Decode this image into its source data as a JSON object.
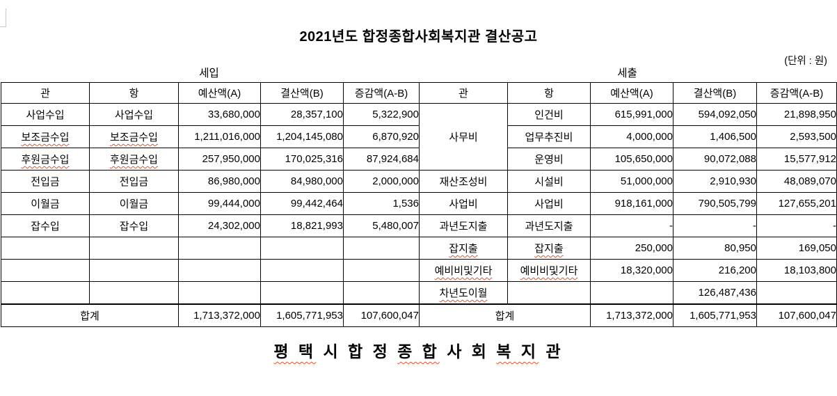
{
  "title": "2021년도 합정종합사회복지관 결산공고",
  "unit_note": "(단위 : 원)",
  "sections": {
    "revenue_caption": "세입",
    "expenditure_caption": "세출"
  },
  "columns": [
    "관",
    "항",
    "예산액(A)",
    "결산액(B)",
    "증감액(A-B)",
    "관",
    "항",
    "예산액(A)",
    "결산액(B)",
    "증감액(A-B)"
  ],
  "rows": [
    [
      {
        "t": "사업수입"
      },
      {
        "t": "사업수입"
      },
      {
        "t": "33,680,000",
        "n": 1
      },
      {
        "t": "28,357,100",
        "n": 1
      },
      {
        "t": "5,322,900",
        "n": 1
      },
      {
        "t": "사무비",
        "rs": 3
      },
      {
        "t": "인건비"
      },
      {
        "t": "615,991,000",
        "n": 1
      },
      {
        "t": "594,092,050",
        "n": 1
      },
      {
        "t": "21,898,950",
        "n": 1
      }
    ],
    [
      {
        "t": "보조금수입",
        "w": 1
      },
      {
        "t": "보조금수입",
        "w": 1
      },
      {
        "t": "1,211,016,000",
        "n": 1
      },
      {
        "t": "1,204,145,080",
        "n": 1
      },
      {
        "t": "6,870,920",
        "n": 1
      },
      null,
      {
        "t": "업무추진비"
      },
      {
        "t": "4,000,000",
        "n": 1
      },
      {
        "t": "1,406,500",
        "n": 1
      },
      {
        "t": "2,593,500",
        "n": 1
      }
    ],
    [
      {
        "t": "후원금수입",
        "w": 1
      },
      {
        "t": "후원금수입",
        "w": 1
      },
      {
        "t": "257,950,000",
        "n": 1
      },
      {
        "t": "170,025,316",
        "n": 1
      },
      {
        "t": "87,924,684",
        "n": 1
      },
      null,
      {
        "t": "운영비"
      },
      {
        "t": "105,650,000",
        "n": 1
      },
      {
        "t": "90,072,088",
        "n": 1
      },
      {
        "t": "15,577,912",
        "n": 1
      }
    ],
    [
      {
        "t": "전입금"
      },
      {
        "t": "전입금"
      },
      {
        "t": "86,980,000",
        "n": 1
      },
      {
        "t": "84,980,000",
        "n": 1
      },
      {
        "t": "2,000,000",
        "n": 1
      },
      {
        "t": "재산조성비"
      },
      {
        "t": "시설비"
      },
      {
        "t": "51,000,000",
        "n": 1
      },
      {
        "t": "2,910,930",
        "n": 1
      },
      {
        "t": "48,089,070",
        "n": 1
      }
    ],
    [
      {
        "t": "이월금"
      },
      {
        "t": "이월금"
      },
      {
        "t": "99,444,000",
        "n": 1
      },
      {
        "t": "99,442,464",
        "n": 1
      },
      {
        "t": "1,536",
        "n": 1
      },
      {
        "t": "사업비"
      },
      {
        "t": "사업비"
      },
      {
        "t": "918,161,000",
        "n": 1
      },
      {
        "t": "790,505,799",
        "n": 1
      },
      {
        "t": "127,655,201",
        "n": 1
      }
    ],
    [
      {
        "t": "잡수입"
      },
      {
        "t": "잡수입"
      },
      {
        "t": "24,302,000",
        "n": 1
      },
      {
        "t": "18,821,993",
        "n": 1
      },
      {
        "t": "5,480,007",
        "n": 1
      },
      {
        "t": "과년도지출"
      },
      {
        "t": "과년도지출"
      },
      {
        "t": "-",
        "n": 1
      },
      {
        "t": "-",
        "n": 1
      },
      {
        "t": "-",
        "n": 1
      }
    ],
    [
      {
        "t": ""
      },
      {
        "t": ""
      },
      {
        "t": ""
      },
      {
        "t": ""
      },
      {
        "t": ""
      },
      {
        "t": "잡지출",
        "w": 1
      },
      {
        "t": "잡지출",
        "w": 1
      },
      {
        "t": "250,000",
        "n": 1
      },
      {
        "t": "80,950",
        "n": 1
      },
      {
        "t": "169,050",
        "n": 1
      }
    ],
    [
      {
        "t": ""
      },
      {
        "t": ""
      },
      {
        "t": ""
      },
      {
        "t": ""
      },
      {
        "t": ""
      },
      {
        "t": "예비비및기타",
        "w": 1
      },
      {
        "t": "예비비및기타",
        "w": 1
      },
      {
        "t": "18,320,000",
        "n": 1
      },
      {
        "t": "216,200",
        "n": 1
      },
      {
        "t": "18,103,800",
        "n": 1
      }
    ],
    [
      {
        "t": ""
      },
      {
        "t": ""
      },
      {
        "t": ""
      },
      {
        "t": ""
      },
      {
        "t": ""
      },
      {
        "t": "차년도이월",
        "w": 1
      },
      {
        "t": ""
      },
      {
        "t": ""
      },
      {
        "t": "126,487,436",
        "n": 1
      },
      {
        "t": ""
      }
    ],
    [
      {
        "t": "합계",
        "cs": 2
      },
      {
        "t": "1,713,372,000",
        "n": 1
      },
      {
        "t": "1,605,771,953",
        "n": 1
      },
      {
        "t": "107,600,047",
        "n": 1
      },
      {
        "t": "합계",
        "cs": 2
      },
      {
        "t": "1,713,372,000",
        "n": 1
      },
      {
        "t": "1,605,771,953",
        "n": 1
      },
      {
        "t": "107,600,047",
        "n": 1
      }
    ]
  ],
  "footer_segments": [
    {
      "text": "평 택",
      "wavy": true
    },
    {
      "text": " 시 합 정 ",
      "wavy": false
    },
    {
      "text": "종 합",
      "wavy": true
    },
    {
      "text": " 사 회 ",
      "wavy": false
    },
    {
      "text": "복 지",
      "wavy": true
    },
    {
      "text": " 관",
      "wavy": false
    }
  ],
  "colors": {
    "text": "#000000",
    "table_border": "#000000",
    "spellcheck_underline": "#f04e23",
    "corner_mark": "#c9c9c9"
  }
}
